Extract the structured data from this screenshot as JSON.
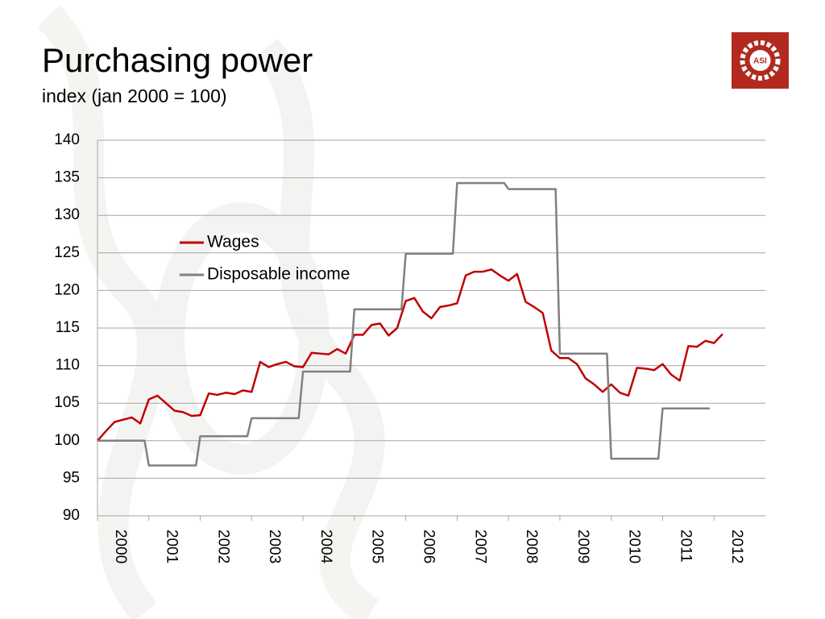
{
  "chart_data": {
    "type": "line",
    "title": "Purchasing power",
    "subtitle": "index (jan 2000 = 100)",
    "logo_text": "ASI",
    "xlim": [
      2000,
      2013
    ],
    "xticks": [
      2000,
      2001,
      2002,
      2003,
      2004,
      2005,
      2006,
      2007,
      2008,
      2009,
      2010,
      2011,
      2012
    ],
    "ylim": [
      90,
      140
    ],
    "yticks": [
      90,
      95,
      100,
      105,
      110,
      115,
      120,
      125,
      130,
      135,
      140
    ],
    "grid": true,
    "legend": "upper-left",
    "series": [
      {
        "name": "Wages",
        "color": "#c00000",
        "x": [
          2000,
          2000.167,
          2000.333,
          2000.5,
          2000.667,
          2000.833,
          2001,
          2001.167,
          2001.333,
          2001.5,
          2001.667,
          2001.833,
          2002,
          2002.167,
          2002.333,
          2002.5,
          2002.667,
          2002.833,
          2003,
          2003.167,
          2003.333,
          2003.5,
          2003.667,
          2003.833,
          2004,
          2004.167,
          2004.333,
          2004.5,
          2004.667,
          2004.833,
          2005,
          2005.167,
          2005.333,
          2005.5,
          2005.667,
          2005.833,
          2006,
          2006.167,
          2006.333,
          2006.5,
          2006.667,
          2006.833,
          2007,
          2007.167,
          2007.333,
          2007.5,
          2007.667,
          2007.833,
          2008,
          2008.167,
          2008.333,
          2008.5,
          2008.667,
          2008.833,
          2009,
          2009.167,
          2009.333,
          2009.5,
          2009.667,
          2009.833,
          2010,
          2010.167,
          2010.333,
          2010.5,
          2010.667,
          2010.833,
          2011,
          2011.167,
          2011.333,
          2011.5,
          2011.667,
          2011.833,
          2012,
          2012.167
        ],
        "values": [
          100,
          101.3,
          102.5,
          102.8,
          103.1,
          102.3,
          105.5,
          106.0,
          105.0,
          104.0,
          103.8,
          103.3,
          103.4,
          106.3,
          106.1,
          106.4,
          106.2,
          106.7,
          106.5,
          110.5,
          109.8,
          110.2,
          110.5,
          109.9,
          109.8,
          111.7,
          111.6,
          111.5,
          112.2,
          111.6,
          114.1,
          114.1,
          115.4,
          115.6,
          114.0,
          115.0,
          118.6,
          119.0,
          117.2,
          116.3,
          117.8,
          118.0,
          118.3,
          122.0,
          122.5,
          122.5,
          122.8,
          122.0,
          121.3,
          122.2,
          118.5,
          117.8,
          117.0,
          112.0,
          111.0,
          111.0,
          110.2,
          108.3,
          107.5,
          106.5,
          107.5,
          106.4,
          106.0,
          109.7,
          109.6,
          109.4,
          110.2,
          108.8,
          108.0,
          112.6,
          112.5,
          113.3,
          113.0,
          114.2
        ]
      },
      {
        "name": "Disposable income",
        "color": "#808080",
        "x": [
          2000,
          2000.917,
          2001,
          2001.917,
          2002,
          2002.917,
          2003,
          2003.917,
          2004,
          2004.917,
          2005,
          2005.917,
          2006,
          2006.917,
          2007,
          2007.917,
          2008,
          2008.917,
          2009,
          2009.917,
          2010,
          2010.917,
          2011,
          2011.917
        ],
        "values": [
          100,
          100,
          96.7,
          96.7,
          100.6,
          100.6,
          103,
          103,
          109.2,
          109.2,
          117.5,
          117.5,
          124.9,
          124.9,
          134.3,
          134.3,
          133.5,
          133.5,
          111.6,
          111.6,
          97.6,
          97.6,
          104.3,
          104.3
        ]
      }
    ]
  }
}
